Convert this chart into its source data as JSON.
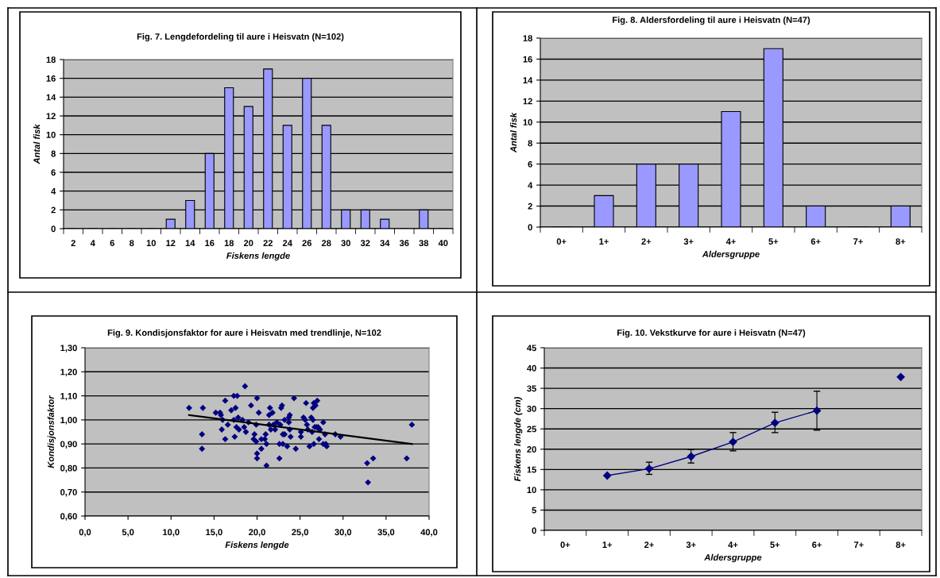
{
  "chart_data": [
    {
      "type": "bar",
      "title": "Fig. 7. Lengdefordeling til aure i Heisvatn (N=102)",
      "xlabel": "Fiskens lengde",
      "ylabel": "Antal fisk",
      "categories": [
        "2",
        "4",
        "6",
        "8",
        "10",
        "12",
        "14",
        "16",
        "18",
        "20",
        "22",
        "24",
        "26",
        "28",
        "30",
        "32",
        "34",
        "36",
        "38",
        "40"
      ],
      "values": [
        0,
        0,
        0,
        0,
        0,
        1,
        3,
        8,
        15,
        13,
        17,
        11,
        16,
        11,
        2,
        2,
        1,
        0,
        2,
        0
      ],
      "color": "#9999ff",
      "ylim": [
        0,
        18
      ],
      "yticks": [
        0,
        2,
        4,
        6,
        8,
        10,
        12,
        14,
        16,
        18
      ],
      "grid": "y"
    },
    {
      "type": "bar",
      "title": "Fig. 8. Aldersfordeling til aure i Heisvatn (N=47)",
      "xlabel": "Aldersgruppe",
      "ylabel": "Antal fisk",
      "categories": [
        "0+",
        "1+",
        "2+",
        "3+",
        "4+",
        "5+",
        "6+",
        "7+",
        "8+"
      ],
      "values": [
        0,
        3,
        6,
        6,
        11,
        17,
        2,
        0,
        2
      ],
      "color": "#9999ff",
      "ylim": [
        0,
        18
      ],
      "yticks": [
        0,
        2,
        4,
        6,
        8,
        10,
        12,
        14,
        16,
        18
      ],
      "grid": "y"
    },
    {
      "type": "scatter",
      "title": "Fig. 9. Kondisjonsfaktor for aure i Heisvatn med trendlinje, N=102",
      "xlabel": "Fiskens lengde",
      "ylabel": "Kondisjonsfaktor",
      "series": [
        {
          "type": "scatter",
          "color": "#000080",
          "marker": "diamond",
          "x": [
            12.1,
            13.7,
            13.6,
            13.6,
            15.2,
            15.7,
            15.8,
            16.0,
            15.9,
            16.3,
            16.3,
            16.6,
            17.0,
            17.3,
            17.7,
            17.5,
            17.3,
            17.8,
            17.6,
            17.9,
            17.4,
            18.6,
            18.3,
            18.5,
            18.7,
            19.0,
            19.3,
            19.7,
            19.6,
            19.9,
            19.9,
            20.0,
            20.2,
            20.0,
            20.0,
            20.5,
            20.5,
            20.9,
            21.0,
            21.1,
            21.1,
            21.4,
            21.5,
            21.4,
            21.8,
            21.6,
            21.9,
            22.1,
            22.3,
            22.6,
            22.6,
            22.8,
            22.9,
            22.7,
            23.0,
            23.0,
            23.2,
            23.2,
            23.5,
            23.7,
            23.8,
            23.7,
            23.8,
            23.9,
            24.3,
            24.5,
            25.1,
            25.1,
            25.4,
            25.6,
            25.7,
            25.8,
            25.9,
            26.1,
            26.3,
            26.4,
            26.5,
            26.5,
            26.6,
            26.6,
            26.8,
            27.0,
            26.7,
            26.9,
            27.1,
            27.3,
            27.2,
            27.3,
            27.7,
            27.7,
            28.0,
            28.1,
            27.9,
            29.1,
            29.7,
            32.8,
            33.5,
            32.9,
            37.4,
            38.0
          ],
          "values": [
            1.05,
            1.05,
            0.94,
            0.88,
            1.03,
            1.03,
            1.02,
            1.0,
            0.96,
            1.08,
            0.92,
            0.98,
            1.04,
            1.1,
            1.1,
            1.05,
            1.0,
            1.01,
            0.97,
            0.96,
            0.93,
            1.14,
            1.0,
            0.97,
            0.95,
            0.99,
            1.06,
            0.94,
            0.92,
            0.91,
            0.98,
            1.09,
            1.03,
            0.86,
            0.84,
            0.88,
            0.92,
            0.92,
            0.94,
            0.9,
            0.81,
            0.98,
            1.05,
            1.02,
            1.03,
            0.96,
            0.98,
            0.96,
            0.99,
            0.9,
            0.84,
            1.05,
            1.06,
            0.98,
            0.9,
            0.94,
            0.94,
            1.0,
            0.89,
            1.01,
            1.02,
            0.99,
            0.96,
            0.93,
            1.09,
            0.88,
            0.95,
            0.93,
            1.01,
            1.0,
            1.07,
            0.98,
            0.96,
            0.89,
            1.01,
            0.95,
            1.0,
            1.05,
            0.9,
            1.07,
            1.06,
            1.08,
            0.97,
            0.97,
            0.97,
            0.96,
            0.92,
            0.96,
            0.99,
            0.9,
            0.9,
            0.89,
            0.94,
            0.94,
            0.93,
            0.82,
            0.84,
            0.74,
            0.84,
            0.98
          ]
        },
        {
          "type": "line",
          "color": "#000000",
          "marker": "none",
          "x": [
            12.1,
            38.0
          ],
          "values": [
            1.02,
            0.9
          ]
        }
      ],
      "xlim": [
        0,
        40
      ],
      "xticks": [
        {
          "value": 0,
          "label": "0,0"
        },
        {
          "value": 5,
          "label": "5,0"
        },
        {
          "value": 10,
          "label": "10,0"
        },
        {
          "value": 15,
          "label": "15,0"
        },
        {
          "value": 20,
          "label": "20,0"
        },
        {
          "value": 25,
          "label": "25,0"
        },
        {
          "value": 30,
          "label": "30,0"
        },
        {
          "value": 35,
          "label": "35,0"
        },
        {
          "value": 40,
          "label": "40,0"
        }
      ],
      "ylim": [
        0.6,
        1.3
      ],
      "yticks": [
        {
          "value": 0.6,
          "label": "0,60"
        },
        {
          "value": 0.7,
          "label": "0,70"
        },
        {
          "value": 0.8,
          "label": "0,80"
        },
        {
          "value": 0.9,
          "label": "0,90"
        },
        {
          "value": 1.0,
          "label": "1,00"
        },
        {
          "value": 1.1,
          "label": "1,10"
        },
        {
          "value": 1.2,
          "label": "1,20"
        },
        {
          "value": 1.3,
          "label": "1,30"
        }
      ],
      "grid": "y"
    },
    {
      "type": "line",
      "title": "Fig. 10. Vekstkurve for aure i Heisvatn (N=47)",
      "xlabel": "Aldersgruppe",
      "ylabel": "Fiskens lengde (cm)",
      "categories": [
        "0+",
        "1+",
        "2+",
        "3+",
        "4+",
        "5+",
        "6+",
        "7+",
        "8+"
      ],
      "series": [
        {
          "type": "line",
          "color": "#000080",
          "marker": "diamond",
          "line_style": "solid",
          "values": [
            null,
            13.5,
            15.2,
            18.2,
            21.8,
            26.5,
            29.5,
            null,
            37.8
          ],
          "errors": [
            null,
            null,
            [
              13.8,
              16.8
            ],
            [
              16.6,
              19.9
            ],
            [
              19.6,
              24.1
            ],
            [
              24.1,
              29.1
            ],
            [
              24.7,
              34.3
            ],
            null,
            null
          ]
        }
      ],
      "ylim": [
        0,
        45
      ],
      "yticks": [
        0,
        5,
        10,
        15,
        20,
        25,
        30,
        35,
        40,
        45
      ],
      "grid": "y"
    }
  ]
}
